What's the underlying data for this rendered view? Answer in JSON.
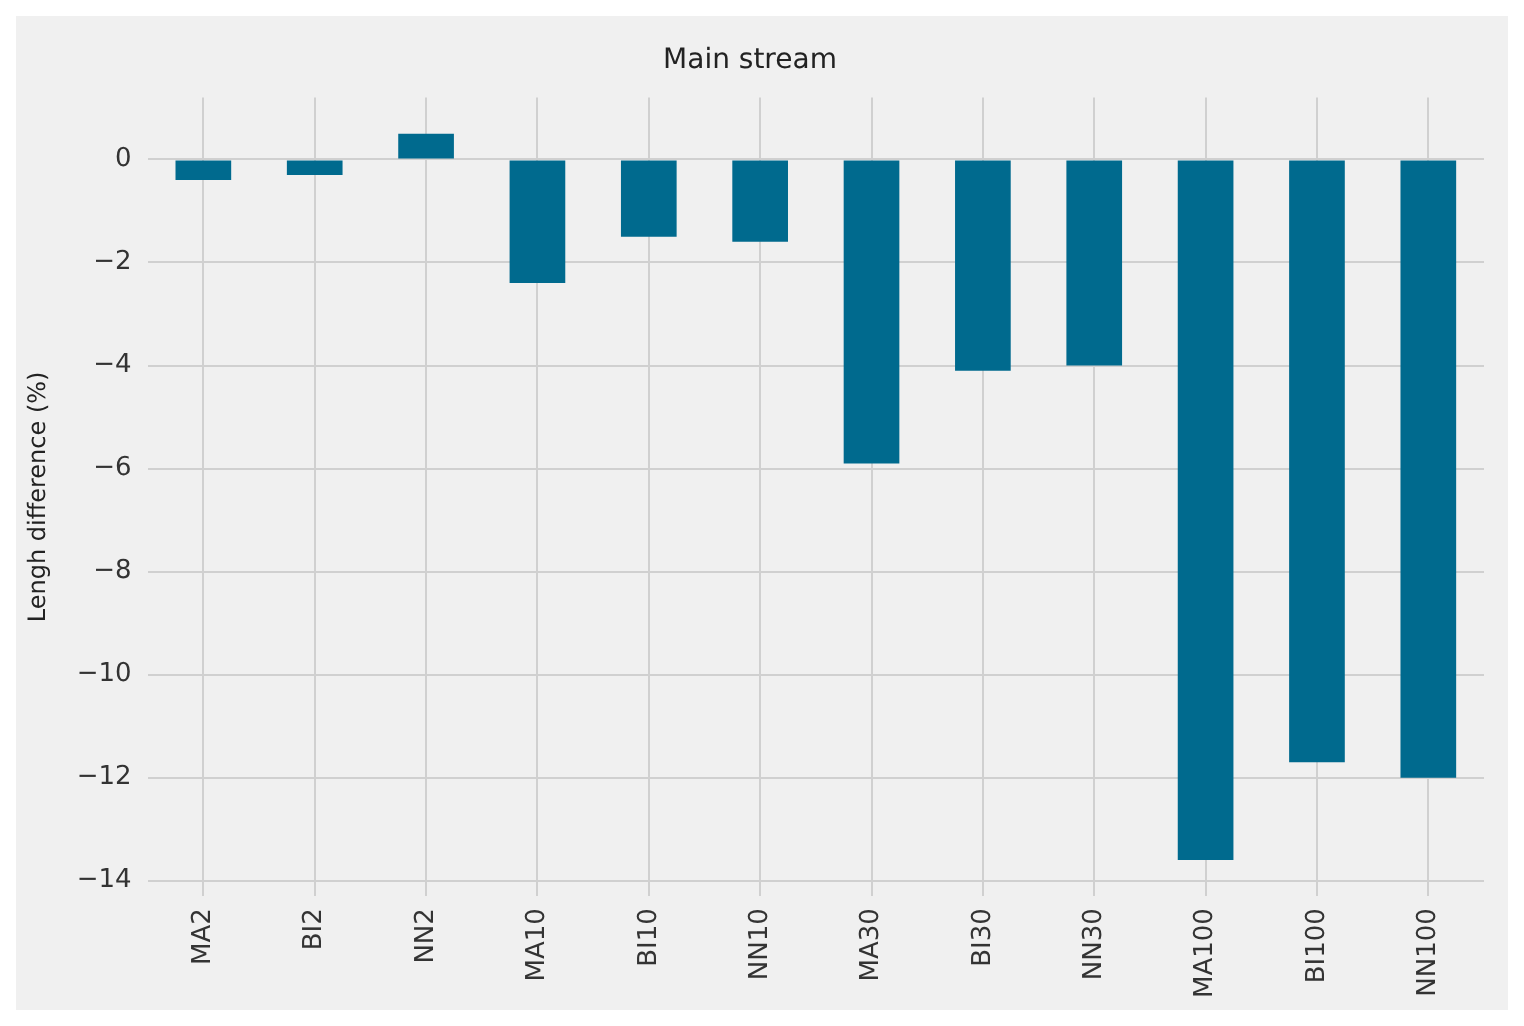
{
  "chart_data": {
    "type": "bar",
    "title": "Main stream",
    "ylabel": "Lengh difference (%)",
    "categories": [
      "MA2",
      "BI2",
      "NN2",
      "MA10",
      "BI10",
      "NN10",
      "MA30",
      "BI30",
      "NN30",
      "MA100",
      "BI100",
      "NN100"
    ],
    "values": [
      -0.4,
      -0.3,
      0.5,
      -2.4,
      -1.5,
      -1.6,
      -5.9,
      -4.1,
      -4.0,
      -13.6,
      -11.7,
      -12.0
    ],
    "color": "#006a8e",
    "ylim": [
      -14.3,
      1.2
    ],
    "yticks": [
      0,
      -2,
      -4,
      -6,
      -8,
      -10,
      -12,
      -14
    ],
    "grid": true,
    "legend": false
  }
}
